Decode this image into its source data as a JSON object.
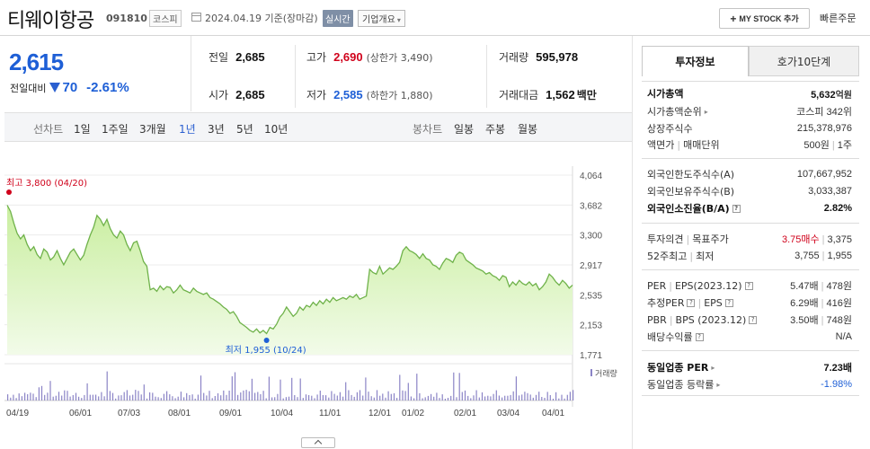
{
  "header": {
    "company": "티웨이항공",
    "code": "091810",
    "market": "코스피",
    "date": "2024.04.19",
    "basis": "기준(장마감)",
    "realtime_label": "실시간",
    "overview_label": "기업개요",
    "mystock_label": "MY STOCK 추가",
    "quick_order_label": "빠른주문"
  },
  "price": {
    "current": "2,615",
    "change_label": "전일대비",
    "change": "70",
    "change_rate": "-2.61%",
    "direction": "down"
  },
  "stats": {
    "prev_close": {
      "label": "전일",
      "value": "2,685"
    },
    "open": {
      "label": "시가",
      "value": "2,685"
    },
    "high": {
      "label": "고가",
      "value": "2,690",
      "sub": "(상한가 3,490)"
    },
    "low": {
      "label": "저가",
      "value": "2,585",
      "sub": "(하한가 1,880)"
    },
    "volume": {
      "label": "거래량",
      "value": "595,978"
    },
    "amount": {
      "label": "거래대금",
      "value": "1,562",
      "unit": "백만"
    }
  },
  "periods": {
    "line_chart_label": "선차트",
    "items": [
      "1일",
      "1주일",
      "3개월",
      "1년",
      "3년",
      "5년",
      "10년"
    ],
    "active": "1년",
    "candle_label": "봉차트",
    "candle_items": [
      "일봉",
      "주봉",
      "월봉"
    ]
  },
  "chart_data": {
    "type": "area",
    "x_ticks": [
      "04/19",
      "06/01",
      "07/03",
      "08/01",
      "09/01",
      "10/04",
      "11/01",
      "12/01",
      "01/02",
      "02/01",
      "03/04",
      "04/01"
    ],
    "y_ticks": [
      "4,064",
      "3,682",
      "3,300",
      "2,917",
      "2,535",
      "2,153",
      "1,771"
    ],
    "ylim": [
      1771,
      4064
    ],
    "max_label": "최고 3,800 (04/20)",
    "min_label": "최저 1,955 (10/24)",
    "volume_label": "거래량",
    "colors": {
      "line": "#6fb24a",
      "fill_top": "#c9ee9f",
      "fill_bottom": "#f2fbe9",
      "volume": "#8b84c6",
      "max": "#d0021b",
      "min": "#1e5fd6"
    },
    "values": [
      3680,
      3600,
      3450,
      3320,
      3250,
      3300,
      3180,
      3100,
      3150,
      3050,
      3000,
      3120,
      3080,
      2980,
      3020,
      3100,
      3000,
      2920,
      3000,
      3080,
      3120,
      3050,
      2980,
      3040,
      3180,
      3300,
      3400,
      3550,
      3500,
      3420,
      3500,
      3380,
      3300,
      3260,
      3350,
      3300,
      3180,
      3100,
      3200,
      3220,
      3100,
      2960,
      2900,
      2600,
      2620,
      2580,
      2650,
      2600,
      2640,
      2630,
      2560,
      2600,
      2660,
      2600,
      2580,
      2560,
      2620,
      2580,
      2560,
      2540,
      2560,
      2500,
      2480,
      2450,
      2420,
      2380,
      2350,
      2300,
      2320,
      2260,
      2180,
      2150,
      2120,
      2080,
      2060,
      2100,
      2050,
      2080,
      2040,
      2120,
      2100,
      2160,
      2250,
      2300,
      2380,
      2320,
      2260,
      2300,
      2380,
      2340,
      2400,
      2380,
      2440,
      2400,
      2460,
      2420,
      2480,
      2440,
      2500,
      2460,
      2480,
      2500,
      2480,
      2520,
      2500,
      2540,
      2480,
      2500,
      2520,
      2860,
      2820,
      2800,
      2900,
      2800,
      2840,
      2880,
      2860,
      2900,
      2950,
      3100,
      3150,
      3100,
      3080,
      3050,
      3000,
      3060,
      3000,
      2980,
      2920,
      2900,
      2860,
      2940,
      3000,
      2980,
      2950,
      3040,
      3080,
      3060,
      2980,
      2950,
      2920,
      2880,
      2860,
      2840,
      2800,
      2820,
      2780,
      2760,
      2720,
      2780,
      2760,
      2640,
      2700,
      2660,
      2720,
      2680,
      2660,
      2700,
      2650,
      2680,
      2600,
      2640,
      2700,
      2800,
      2760,
      2700,
      2660,
      2720,
      2680,
      2620,
      2660
    ]
  },
  "right_panel": {
    "tabs": [
      "투자정보",
      "호가10단계"
    ],
    "rows": [
      {
        "k": "시가총액",
        "v": "5,632",
        "unit": "억원",
        "kbold": true,
        "vbold": true
      },
      {
        "k": "시가총액순위",
        "v": "코스피 342위",
        "arrow": true
      },
      {
        "k": "상장주식수",
        "v": "215,378,976"
      },
      {
        "k": "액면가",
        "k2": "매매단위",
        "v": "500원",
        "v2": "1주"
      },
      {
        "k": "외국인한도주식수(A)",
        "v": "107,667,952"
      },
      {
        "k": "외국인보유주식수(B)",
        "v": "3,033,387"
      },
      {
        "k": "외국인소진율(B/A)",
        "v": "2.82%",
        "kbold": true,
        "vbold": true,
        "q": true
      },
      {
        "k": "투자의견",
        "k2": "목표주가",
        "v": "3.75매수",
        "v2": "3,375",
        "vred": true
      },
      {
        "k": "52주최고",
        "k2": "최저",
        "v": "3,755",
        "v2": "1,955"
      },
      {
        "k": "PER",
        "k2": "EPS(2023.12)",
        "v": "5.47배",
        "v2": "478원",
        "q": true
      },
      {
        "k": "추정PER",
        "k2": "EPS",
        "v": "6.29배",
        "v2": "416원",
        "q": true,
        "q1": true
      },
      {
        "k": "PBR",
        "k2": "BPS (2023.12)",
        "v": "3.50배",
        "v2": "748원",
        "q": true
      },
      {
        "k": "배당수익률",
        "v": "N/A",
        "q": true
      },
      {
        "k": "동일업종 PER",
        "v": "7.23배",
        "kbold": true,
        "vbold": true,
        "arrow": true
      },
      {
        "k": "동일업종 등락률",
        "v": "-1.98%",
        "vblue": true,
        "arrow": true
      }
    ]
  }
}
